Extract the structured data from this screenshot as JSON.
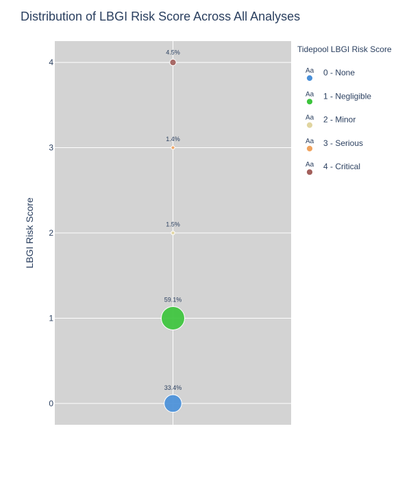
{
  "chart_data": {
    "type": "scatter",
    "title": "Distribution of LBGI Risk Score Across All Analyses",
    "ylabel": "LBGI Risk Score",
    "xlabel": "",
    "ylim": [
      -0.25,
      4.25
    ],
    "yticks": [
      0,
      1,
      2,
      3,
      4
    ],
    "grid": true,
    "plot_background": "#d3d3d3",
    "legend": {
      "title": "Tidepool LBGI Risk Score",
      "placement": "right",
      "symbol_text": "Aa"
    },
    "series": [
      {
        "name": "0 - None",
        "y": 0,
        "percent": 33.4,
        "label": "33.4%",
        "color": "#4a90d9"
      },
      {
        "name": "1 - Negligible",
        "y": 1,
        "percent": 59.1,
        "label": "59.1%",
        "color": "#3cc43c"
      },
      {
        "name": "2 - Minor",
        "y": 2,
        "percent": 1.5,
        "label": "1.5%",
        "color": "#e1d5a0"
      },
      {
        "name": "3 - Serious",
        "y": 3,
        "percent": 1.4,
        "label": "1.4%",
        "color": "#f0a35e"
      },
      {
        "name": "4 - Critical",
        "y": 4,
        "percent": 4.5,
        "label": "4.5%",
        "color": "#a3605c"
      }
    ]
  }
}
